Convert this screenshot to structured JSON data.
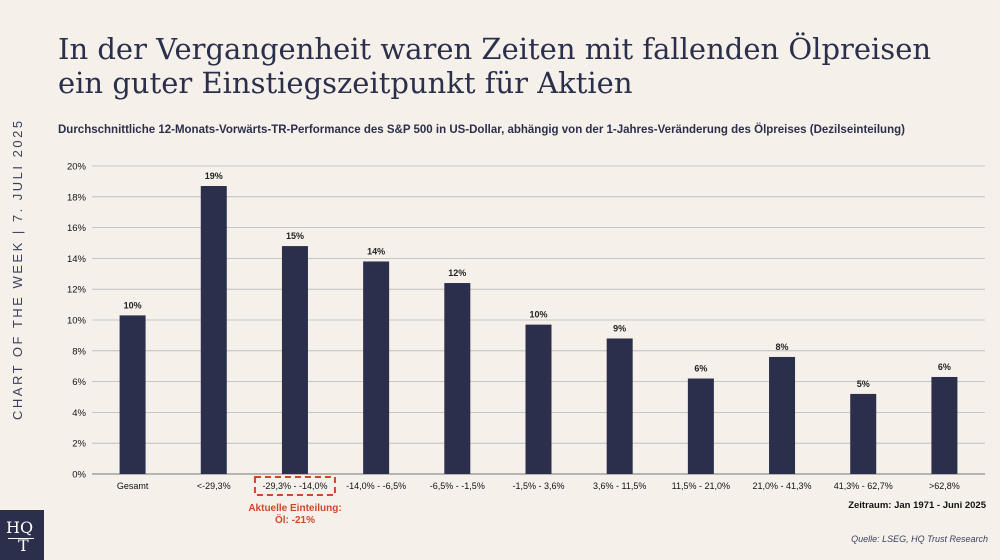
{
  "side_label": "CHART OF THE WEEK | 7. JULI 2025",
  "logo": {
    "line1": "HQ",
    "line2": "T"
  },
  "title_line1": "In der Vergangenheit waren Zeiten mit fallenden Ölpreisen",
  "title_line2": "ein guter Einstiegszeitpunkt für Aktien",
  "subtitle": "Durchschnittliche 12-Monats-Vorwärts-TR-Performance des S&P 500 in US-Dollar, abhängig von der 1-Jahres-Veränderung des Ölpreises (Dezilseinteilung)",
  "current": {
    "line1": "Aktuelle Einteilung:",
    "line2": "Öl: -21%"
  },
  "period": "Zeitraum: Jan 1971 - Juni 2025",
  "source": "Quelle: LSEG, HQ Trust Research",
  "colors": {
    "bar": "#2b2f4c",
    "highlight": "#d2452b",
    "background": "#f5f1ea"
  },
  "chart_data": {
    "type": "bar",
    "categories": [
      "Gesamt",
      "<-29,3%",
      "-29,3% - -14,0%",
      "-14,0% - -6,5%",
      "-6,5% - -1,5%",
      "-1,5% - 3,6%",
      "3,6% - 11,5%",
      "11,5% - 21,0%",
      "21,0% - 41,3%",
      "41,3% - 62,7%",
      ">62,8%"
    ],
    "values": [
      10.3,
      18.7,
      14.8,
      13.8,
      12.4,
      9.7,
      8.8,
      6.2,
      7.6,
      5.2,
      6.3
    ],
    "data_labels": [
      "10%",
      "19%",
      "15%",
      "14%",
      "12%",
      "10%",
      "9%",
      "6%",
      "8%",
      "5%",
      "6%"
    ],
    "yticks": [
      "0%",
      "2%",
      "4%",
      "6%",
      "8%",
      "10%",
      "12%",
      "14%",
      "16%",
      "18%",
      "20%"
    ],
    "ylim": [
      0,
      20
    ],
    "highlight_category": "-29,3% - -14,0%",
    "grid": true,
    "legend": "none"
  }
}
